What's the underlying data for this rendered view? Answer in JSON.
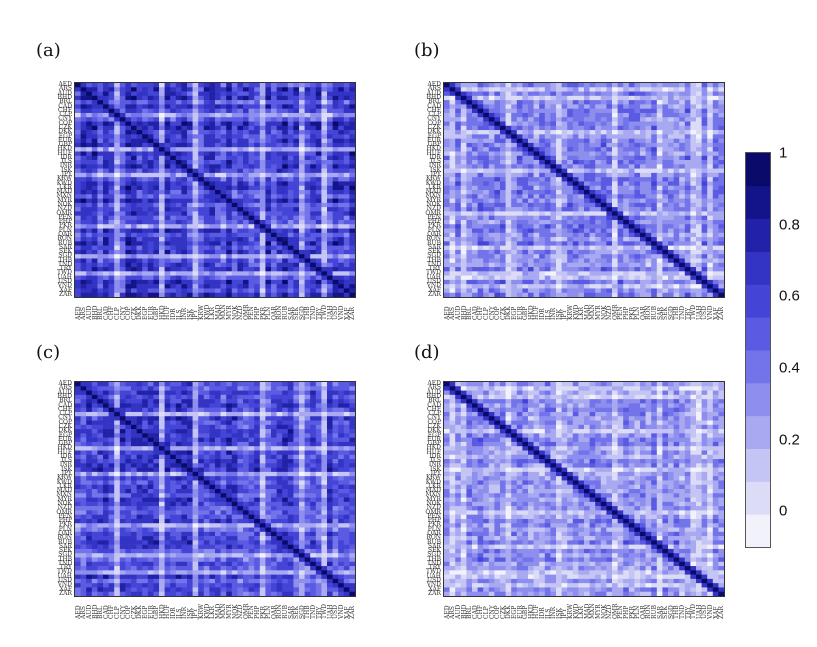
{
  "chart_data": [
    {
      "type": "heatmap",
      "panel_label": "(a)",
      "title": "",
      "row_labels": [
        "AED",
        "ARS",
        "AUD",
        "BHD",
        "BRL",
        "CAD",
        "CHF",
        "CLP",
        "CNY",
        "COP",
        "CZK",
        "DKK",
        "EGP",
        "EUR",
        "GBP",
        "HKD",
        "HUF",
        "IDR",
        "ILS",
        "INR",
        "ISK",
        "JPY",
        "KRW",
        "KWD",
        "LKR",
        "MAD",
        "MXN",
        "MYR",
        "NOK",
        "NZD",
        "OMR",
        "PEN",
        "PHP",
        "PKR",
        "PLN",
        "QAR",
        "RON",
        "RUB",
        "SAR",
        "SEK",
        "SGD",
        "THB",
        "TND",
        "TRY",
        "TWD",
        "UAH",
        "USD",
        "VND",
        "XAF",
        "ZAR"
      ],
      "col_labels": [
        "AED",
        "ARS",
        "AUD",
        "BHD",
        "BRL",
        "CAD",
        "CHF",
        "CLP",
        "CNY",
        "COP",
        "CZK",
        "DKK",
        "EGP",
        "EUR",
        "GBP",
        "HKD",
        "HUF",
        "IDR",
        "ILS",
        "INR",
        "ISK",
        "JPY",
        "KRW",
        "KWD",
        "LKR",
        "MAD",
        "MXN",
        "MYR",
        "NOK",
        "NZD",
        "OMR",
        "PEN",
        "PHP",
        "PKR",
        "PLN",
        "QAR",
        "RON",
        "RUB",
        "SAR",
        "SEK",
        "SGD",
        "THB",
        "TND",
        "TRY",
        "TWD",
        "UAH",
        "USD",
        "VND",
        "XAF",
        "ZAR"
      ],
      "diagonal": 1,
      "base_level": 0.55,
      "weak_columns": [
        7,
        15,
        21,
        33,
        40,
        44
      ],
      "value_range": [
        -0.1,
        1
      ]
    },
    {
      "type": "heatmap",
      "panel_label": "(b)",
      "title": "",
      "row_labels": [
        "AED",
        "ARS",
        "AUD",
        "BHD",
        "BRL",
        "CAD",
        "CHF",
        "CLP",
        "CNY",
        "COP",
        "CZK",
        "DKK",
        "EGP",
        "EUR",
        "GBP",
        "HKD",
        "HUF",
        "IDR",
        "ILS",
        "INR",
        "ISK",
        "JPY",
        "KRW",
        "KWD",
        "LKR",
        "MAD",
        "MXN",
        "MYR",
        "NOK",
        "NZD",
        "OMR",
        "PEN",
        "PHP",
        "PKR",
        "PLN",
        "QAR",
        "RON",
        "RUB",
        "SAR",
        "SEK",
        "SGD",
        "THB",
        "TND",
        "TRY",
        "TWD",
        "UAH",
        "USD",
        "VND",
        "XAF",
        "ZAR"
      ],
      "col_labels": [
        "AED",
        "ARS",
        "AUD",
        "BHD",
        "BRL",
        "CAD",
        "CHF",
        "CLP",
        "CNY",
        "COP",
        "CZK",
        "DKK",
        "EGP",
        "EUR",
        "GBP",
        "HKD",
        "HUF",
        "IDR",
        "ILS",
        "INR",
        "ISK",
        "JPY",
        "KRW",
        "KWD",
        "LKR",
        "MAD",
        "MXN",
        "MYR",
        "NOK",
        "NZD",
        "OMR",
        "PEN",
        "PHP",
        "PKR",
        "PLN",
        "QAR",
        "RON",
        "RUB",
        "SAR",
        "SEK",
        "SGD",
        "THB",
        "TND",
        "TRY",
        "TWD",
        "UAH",
        "USD",
        "VND",
        "XAF",
        "ZAR"
      ],
      "diagonal": 1,
      "base_level": 0.3,
      "weak_columns": [
        1,
        3,
        11,
        20,
        30,
        38,
        44,
        45,
        47
      ],
      "value_range": [
        -0.1,
        1
      ]
    },
    {
      "type": "heatmap",
      "panel_label": "(c)",
      "title": "",
      "row_labels": [
        "AED",
        "ARS",
        "AUD",
        "BHD",
        "BRL",
        "CAD",
        "CHF",
        "CLP",
        "CNY",
        "COP",
        "CZK",
        "DKK",
        "EGP",
        "EUR",
        "GBP",
        "HKD",
        "HUF",
        "IDR",
        "ILS",
        "INR",
        "ISK",
        "JPY",
        "KRW",
        "KWD",
        "LKR",
        "MAD",
        "MXN",
        "MYR",
        "NOK",
        "NZD",
        "OMR",
        "PEN",
        "PHP",
        "PKR",
        "PLN",
        "QAR",
        "RON",
        "RUB",
        "SAR",
        "SEK",
        "SGD",
        "THB",
        "TND",
        "TRY",
        "TWD",
        "UAH",
        "USD",
        "VND",
        "XAF",
        "ZAR"
      ],
      "col_labels": [
        "AED",
        "ARS",
        "AUD",
        "BHD",
        "BRL",
        "CAD",
        "CHF",
        "CLP",
        "CNY",
        "COP",
        "CZK",
        "DKK",
        "EGP",
        "EUR",
        "GBP",
        "HKD",
        "HUF",
        "IDR",
        "ILS",
        "INR",
        "ISK",
        "JPY",
        "KRW",
        "KWD",
        "LKR",
        "MAD",
        "MXN",
        "MYR",
        "NOK",
        "NZD",
        "OMR",
        "PEN",
        "PHP",
        "PKR",
        "PLN",
        "QAR",
        "RON",
        "RUB",
        "SAR",
        "SEK",
        "SGD",
        "THB",
        "TND",
        "TRY",
        "TWD",
        "UAH",
        "USD",
        "VND",
        "XAF",
        "ZAR"
      ],
      "diagonal": 1,
      "base_level": 0.5,
      "weak_columns": [
        7,
        15,
        21,
        33,
        40,
        44
      ],
      "value_range": [
        -0.1,
        1
      ]
    },
    {
      "type": "heatmap",
      "panel_label": "(d)",
      "title": "",
      "row_labels": [
        "AED",
        "ARS",
        "AUD",
        "BHD",
        "BRL",
        "CAD",
        "CHF",
        "CLP",
        "CNY",
        "COP",
        "CZK",
        "DKK",
        "EGP",
        "EUR",
        "GBP",
        "HKD",
        "HUF",
        "IDR",
        "ILS",
        "INR",
        "ISK",
        "JPY",
        "KRW",
        "KWD",
        "LKR",
        "MAD",
        "MXN",
        "MYR",
        "NOK",
        "NZD",
        "OMR",
        "PEN",
        "PHP",
        "PKR",
        "PLN",
        "QAR",
        "RON",
        "RUB",
        "SAR",
        "SEK",
        "SGD",
        "THB",
        "TND",
        "TRY",
        "TWD",
        "UAH",
        "USD",
        "VND",
        "XAF",
        "ZAR"
      ],
      "col_labels": [
        "AED",
        "ARS",
        "AUD",
        "BHD",
        "BRL",
        "CAD",
        "CHF",
        "CLP",
        "CNY",
        "COP",
        "CZK",
        "DKK",
        "EGP",
        "EUR",
        "GBP",
        "HKD",
        "HUF",
        "IDR",
        "ILS",
        "INR",
        "ISK",
        "JPY",
        "KRW",
        "KWD",
        "LKR",
        "MAD",
        "MXN",
        "MYR",
        "NOK",
        "NZD",
        "OMR",
        "PEN",
        "PHP",
        "PKR",
        "PLN",
        "QAR",
        "RON",
        "RUB",
        "SAR",
        "SEK",
        "SGD",
        "THB",
        "TND",
        "TRY",
        "TWD",
        "UAH",
        "USD",
        "VND",
        "XAF",
        "ZAR"
      ],
      "diagonal": 1,
      "base_level": 0.28,
      "weak_columns": [
        1,
        3,
        11,
        20,
        30,
        38,
        44,
        45,
        47
      ],
      "value_range": [
        -0.1,
        1
      ]
    }
  ],
  "colorbar": {
    "ticks": [
      "1",
      "0.8",
      "0.6",
      "0.4",
      "0.2",
      "0"
    ],
    "tick_values": [
      1,
      0.8,
      0.6,
      0.4,
      0.2,
      0
    ],
    "range": [
      -0.1,
      1
    ],
    "levels": 11,
    "colors": [
      "#f2f2fb",
      "#dcdcf7",
      "#c4c4f5",
      "#a9a9f2",
      "#8e8eef",
      "#7373ea",
      "#5a5ae3",
      "#4444d6",
      "#3333c4",
      "#2222a8",
      "#14148a",
      "#0a0a6b"
    ]
  }
}
